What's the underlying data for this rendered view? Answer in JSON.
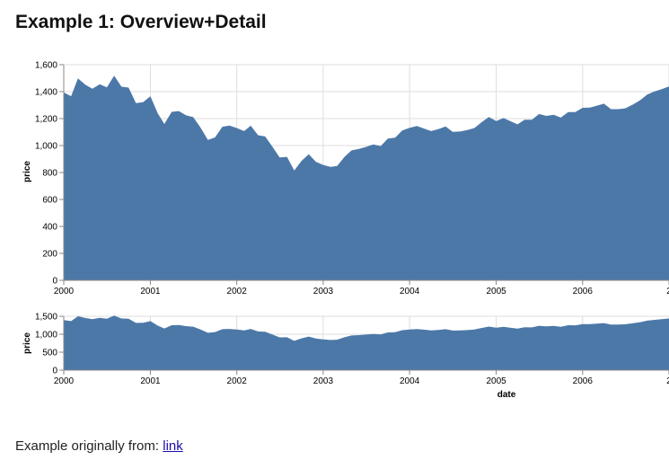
{
  "page": {
    "title": "Example 1: Overview+Detail",
    "footer_text": "Example originally from: ",
    "footer_link": "link"
  },
  "colors": {
    "area": "#4c78a8",
    "grid": "#dddddd",
    "axis": "#888888"
  },
  "chart_data": [
    {
      "type": "area",
      "role": "detail",
      "xlabel": "",
      "ylabel": "price",
      "xlim": [
        "2000-01-01",
        "2007-01-01"
      ],
      "ylim": [
        0,
        1600
      ],
      "y_ticks": [
        0,
        200,
        400,
        600,
        800,
        1000,
        1200,
        1400,
        1600
      ],
      "y_tick_labels": [
        "0",
        "200",
        "400",
        "600",
        "800",
        "1,000",
        "1,200",
        "1,400",
        "1,600"
      ],
      "x_ticks": [
        "2000",
        "2001",
        "2002",
        "2003",
        "2004",
        "2005",
        "2006",
        "2"
      ],
      "grid": true
    },
    {
      "type": "area",
      "role": "overview",
      "xlabel": "date",
      "ylabel": "price",
      "xlim": [
        "2000-01-01",
        "2007-01-01"
      ],
      "ylim": [
        0,
        1500
      ],
      "y_ticks": [
        0,
        500,
        1000,
        1500
      ],
      "y_tick_labels": [
        "0",
        "500",
        "1,000",
        "1,500"
      ],
      "x_ticks": [
        "2000",
        "2001",
        "2002",
        "2003",
        "2004",
        "2005",
        "2006",
        "2"
      ],
      "grid": true
    }
  ],
  "series": {
    "name": "price",
    "dates": [
      "2000-01",
      "2000-02",
      "2000-03",
      "2000-04",
      "2000-05",
      "2000-06",
      "2000-07",
      "2000-08",
      "2000-09",
      "2000-10",
      "2000-11",
      "2000-12",
      "2001-01",
      "2001-02",
      "2001-03",
      "2001-04",
      "2001-05",
      "2001-06",
      "2001-07",
      "2001-08",
      "2001-09",
      "2001-10",
      "2001-11",
      "2001-12",
      "2002-01",
      "2002-02",
      "2002-03",
      "2002-04",
      "2002-05",
      "2002-06",
      "2002-07",
      "2002-08",
      "2002-09",
      "2002-10",
      "2002-11",
      "2002-12",
      "2003-01",
      "2003-02",
      "2003-03",
      "2003-04",
      "2003-05",
      "2003-06",
      "2003-07",
      "2003-08",
      "2003-09",
      "2003-10",
      "2003-11",
      "2003-12",
      "2004-01",
      "2004-02",
      "2004-03",
      "2004-04",
      "2004-05",
      "2004-06",
      "2004-07",
      "2004-08",
      "2004-09",
      "2004-10",
      "2004-11",
      "2004-12",
      "2005-01",
      "2005-02",
      "2005-03",
      "2005-04",
      "2005-05",
      "2005-06",
      "2005-07",
      "2005-08",
      "2005-09",
      "2005-10",
      "2005-11",
      "2005-12",
      "2006-01",
      "2006-02",
      "2006-03",
      "2006-04",
      "2006-05",
      "2006-06",
      "2006-07",
      "2006-08",
      "2006-09",
      "2006-10",
      "2006-11",
      "2006-12",
      "2007-01"
    ],
    "values": [
      1394,
      1366,
      1499,
      1452,
      1421,
      1455,
      1431,
      1518,
      1437,
      1430,
      1315,
      1321,
      1366,
      1240,
      1160,
      1250,
      1256,
      1224,
      1211,
      1133,
      1041,
      1060,
      1139,
      1148,
      1130,
      1107,
      1147,
      1077,
      1067,
      990,
      912,
      916,
      815,
      885,
      936,
      880,
      856,
      841,
      848,
      916,
      964,
      975,
      990,
      1008,
      996,
      1051,
      1058,
      1112,
      1131,
      1145,
      1127,
      1107,
      1121,
      1141,
      1102,
      1104,
      1115,
      1130,
      1174,
      1212,
      1181,
      1204,
      1181,
      1157,
      1192,
      1191,
      1234,
      1220,
      1229,
      1207,
      1249,
      1248,
      1280,
      1281,
      1295,
      1311,
      1270,
      1270,
      1277,
      1304,
      1336,
      1378,
      1401,
      1418,
      1438
    ]
  }
}
